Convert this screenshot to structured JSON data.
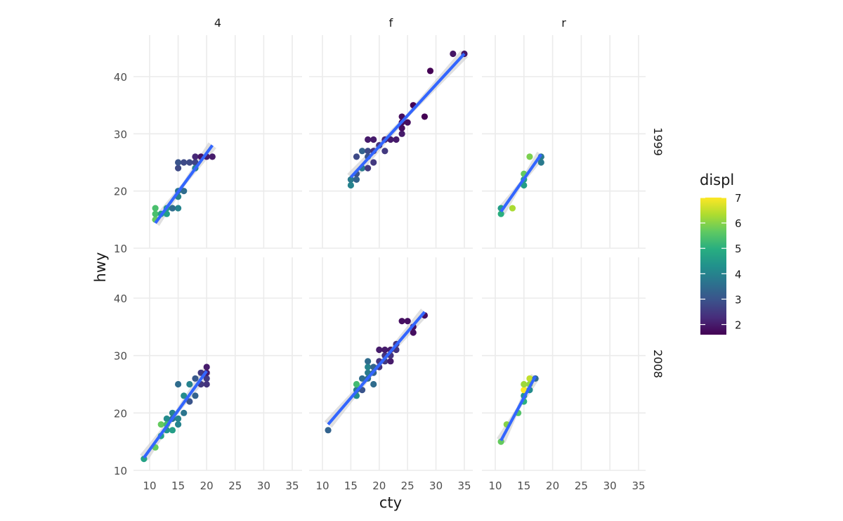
{
  "chart_data": {
    "type": "scatter",
    "xlabel": "cty",
    "ylabel": "hwy",
    "xlim": [
      8,
      36
    ],
    "ylim": [
      10,
      47
    ],
    "x_ticks": [
      10,
      15,
      20,
      25,
      30,
      35
    ],
    "y_ticks": [
      10,
      20,
      30,
      40
    ],
    "grid": true,
    "trend": "linear fit with confidence band",
    "col_facets": [
      "4",
      "f",
      "r"
    ],
    "row_facets": [
      "1999",
      "2008"
    ],
    "legend": {
      "title": "displ",
      "type": "colorbar",
      "palette": "viridis",
      "range": [
        1.6,
        7.0
      ],
      "ticks": [
        2,
        3,
        4,
        5,
        6,
        7
      ],
      "position": "right"
    },
    "colors": {
      "trend_line": "#3366ff",
      "band": "#cccccc",
      "grid": "#ebebeb"
    },
    "panels": [
      {
        "col": "4",
        "row": "1999",
        "fit": {
          "x": [
            11,
            21
          ],
          "y": [
            14.4,
            28
          ]
        },
        "points": [
          [
            11,
            15,
            5.7
          ],
          [
            11,
            16,
            5.4
          ],
          [
            11,
            17,
            5.4
          ],
          [
            12,
            16,
            4.6
          ],
          [
            13,
            16,
            4.6
          ],
          [
            13,
            17,
            4.6
          ],
          [
            14,
            17,
            4.0
          ],
          [
            15,
            17,
            4.0
          ],
          [
            14,
            17,
            3.5
          ],
          [
            15,
            19,
            4.0
          ],
          [
            15,
            20,
            3.7
          ],
          [
            16,
            20,
            3.5
          ],
          [
            15,
            24,
            2.8
          ],
          [
            15,
            25,
            3.0
          ],
          [
            16,
            25,
            2.8
          ],
          [
            17,
            25,
            2.8
          ],
          [
            18,
            25,
            2.7
          ],
          [
            18,
            24,
            4.0
          ],
          [
            18,
            26,
            2.2
          ],
          [
            19,
            26,
            1.9
          ],
          [
            20,
            26,
            2.0
          ],
          [
            21,
            26,
            2.0
          ]
        ]
      },
      {
        "col": "f",
        "row": "1999",
        "fit": {
          "x": [
            15,
            35
          ],
          "y": [
            22.4,
            44
          ]
        },
        "points": [
          [
            15,
            21,
            4.0
          ],
          [
            15,
            22,
            3.8
          ],
          [
            16,
            22,
            3.3
          ],
          [
            16,
            23,
            3.0
          ],
          [
            16,
            26,
            2.8
          ],
          [
            17,
            24,
            3.8
          ],
          [
            17,
            27,
            3.3
          ],
          [
            18,
            24,
            2.5
          ],
          [
            18,
            26,
            3.0
          ],
          [
            18,
            27,
            2.8
          ],
          [
            18,
            29,
            2.0
          ],
          [
            19,
            25,
            2.5
          ],
          [
            19,
            27,
            2.4
          ],
          [
            19,
            29,
            2.0
          ],
          [
            20,
            28,
            2.4
          ],
          [
            21,
            27,
            2.5
          ],
          [
            21,
            29,
            2.2
          ],
          [
            22,
            29,
            2.0
          ],
          [
            23,
            29,
            2.0
          ],
          [
            24,
            30,
            2.0
          ],
          [
            24,
            31,
            1.8
          ],
          [
            24,
            32,
            1.8
          ],
          [
            24,
            33,
            1.8
          ],
          [
            25,
            32,
            1.8
          ],
          [
            26,
            35,
            1.6
          ],
          [
            28,
            33,
            1.6
          ],
          [
            29,
            41,
            1.6
          ],
          [
            33,
            44,
            1.9
          ],
          [
            35,
            44,
            1.9
          ]
        ]
      },
      {
        "col": "r",
        "row": "1999",
        "fit": {
          "x": [
            11,
            18
          ],
          "y": [
            16.4,
            26.4
          ]
        },
        "points": [
          [
            11,
            16,
            5.0
          ],
          [
            11,
            17,
            4.6
          ],
          [
            13,
            17,
            6.3
          ],
          [
            15,
            21,
            4.6
          ],
          [
            15,
            22,
            4.6
          ],
          [
            15,
            23,
            5.7
          ],
          [
            16,
            26,
            5.9
          ],
          [
            18,
            25,
            3.8
          ],
          [
            18,
            26,
            3.8
          ]
        ]
      },
      {
        "col": "4",
        "row": "2008",
        "fit": {
          "x": [
            9,
            20
          ],
          "y": [
            12.2,
            27.3
          ]
        },
        "points": [
          [
            9,
            12,
            4.7
          ],
          [
            11,
            14,
            5.7
          ],
          [
            12,
            16,
            4.7
          ],
          [
            12,
            18,
            5.7
          ],
          [
            13,
            17,
            4.4
          ],
          [
            13,
            19,
            4.2
          ],
          [
            13,
            18,
            5.3
          ],
          [
            14,
            17,
            4.6
          ],
          [
            14,
            20,
            4.0
          ],
          [
            14,
            19,
            3.7
          ],
          [
            15,
            18,
            4.0
          ],
          [
            15,
            19,
            4.0
          ],
          [
            15,
            25,
            3.5
          ],
          [
            16,
            20,
            3.7
          ],
          [
            16,
            23,
            4.2
          ],
          [
            17,
            22,
            3.0
          ],
          [
            17,
            25,
            4.0
          ],
          [
            18,
            23,
            3.3
          ],
          [
            18,
            26,
            3.1
          ],
          [
            19,
            25,
            2.5
          ],
          [
            19,
            27,
            2.5
          ],
          [
            20,
            25,
            2.4
          ],
          [
            20,
            26,
            2.5
          ],
          [
            20,
            27,
            2.0
          ],
          [
            20,
            28,
            2.0
          ]
        ]
      },
      {
        "col": "f",
        "row": "2008",
        "fit": {
          "x": [
            11,
            28
          ],
          "y": [
            18,
            37.6
          ]
        },
        "points": [
          [
            11,
            17,
            3.3
          ],
          [
            16,
            23,
            4.2
          ],
          [
            16,
            24,
            3.8
          ],
          [
            16,
            25,
            5.3
          ],
          [
            17,
            24,
            3.0
          ],
          [
            17,
            26,
            3.5
          ],
          [
            18,
            26,
            3.5
          ],
          [
            18,
            27,
            3.8
          ],
          [
            18,
            28,
            4.0
          ],
          [
            18,
            29,
            3.5
          ],
          [
            19,
            25,
            3.5
          ],
          [
            19,
            27,
            3.3
          ],
          [
            19,
            28,
            3.3
          ],
          [
            20,
            28,
            2.4
          ],
          [
            20,
            29,
            2.4
          ],
          [
            20,
            31,
            2.0
          ],
          [
            21,
            29,
            2.5
          ],
          [
            21,
            30,
            2.4
          ],
          [
            21,
            31,
            2.0
          ],
          [
            22,
            29,
            2.0
          ],
          [
            22,
            30,
            2.4
          ],
          [
            22,
            31,
            2.0
          ],
          [
            23,
            31,
            2.4
          ],
          [
            23,
            32,
            2.4
          ],
          [
            24,
            36,
            1.8
          ],
          [
            25,
            36,
            1.8
          ],
          [
            26,
            34,
            1.8
          ],
          [
            26,
            35,
            1.8
          ],
          [
            28,
            37,
            1.8
          ]
        ]
      },
      {
        "col": "r",
        "row": "2008",
        "fit": {
          "x": [
            11,
            17
          ],
          "y": [
            15.2,
            26.4
          ]
        },
        "points": [
          [
            11,
            15,
            5.7
          ],
          [
            12,
            18,
            6.0
          ],
          [
            14,
            20,
            5.5
          ],
          [
            15,
            22,
            5.0
          ],
          [
            15,
            23,
            4.4
          ],
          [
            15,
            24,
            7.0
          ],
          [
            15,
            25,
            6.2
          ],
          [
            16,
            24,
            4.2
          ],
          [
            16,
            25,
            6.1
          ],
          [
            16,
            26,
            6.5
          ],
          [
            17,
            26,
            3.5
          ]
        ]
      }
    ]
  }
}
